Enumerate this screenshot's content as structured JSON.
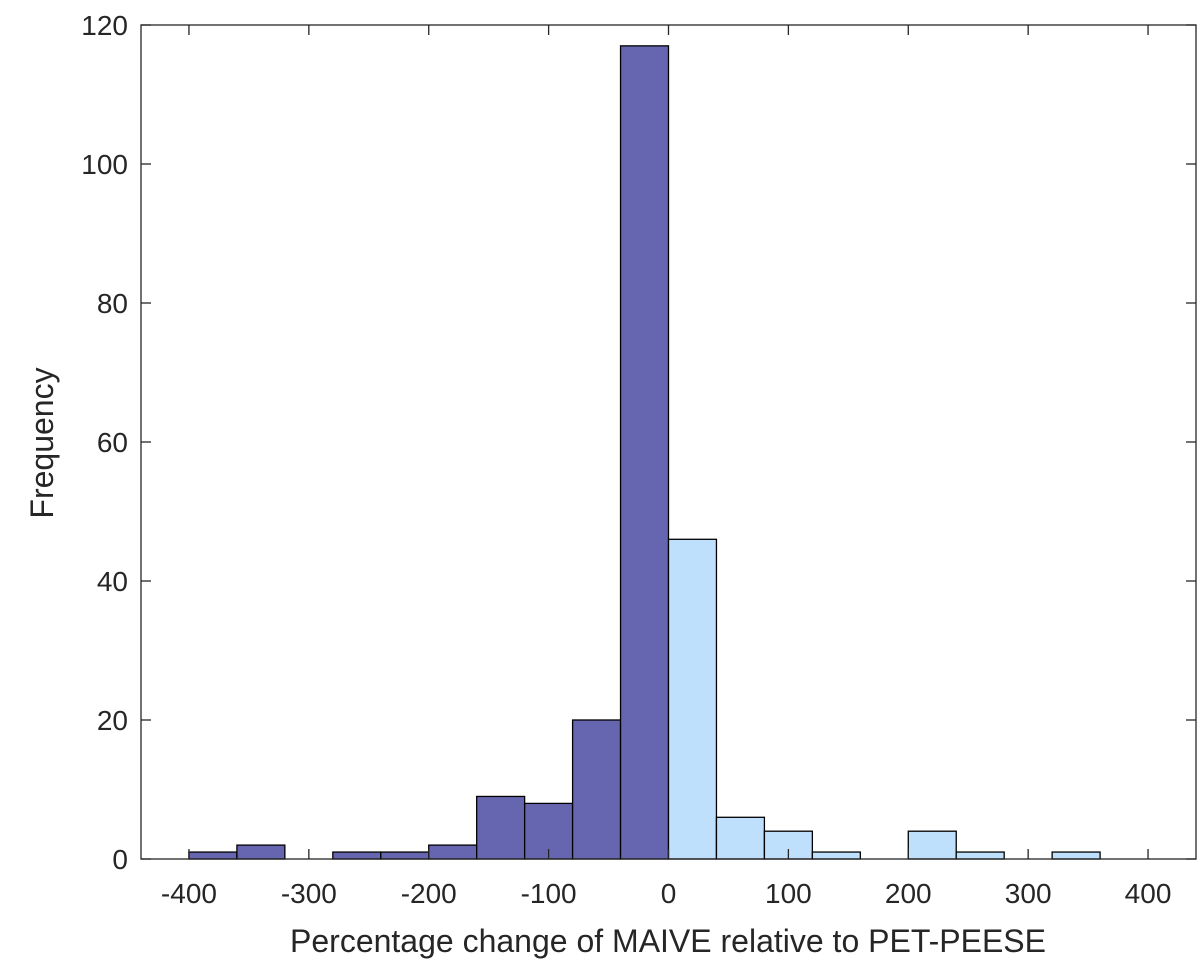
{
  "chart_data": {
    "type": "bar",
    "title": "",
    "xlabel": "Percentage change of MAIVE relative to PET-PEESE",
    "ylabel": "Frequency",
    "xlim": [
      -440,
      440
    ],
    "ylim": [
      0,
      120
    ],
    "grid": false,
    "bin_width": 40,
    "x_ticks": [
      -400,
      -300,
      -200,
      -100,
      0,
      100,
      200,
      300,
      400
    ],
    "x_tick_labels": [
      "-400",
      "-300",
      "-200",
      "-100",
      "0",
      "100",
      "200",
      "300",
      "400"
    ],
    "y_ticks": [
      0,
      20,
      40,
      60,
      80,
      100,
      120
    ],
    "y_tick_labels": [
      "0",
      "20",
      "40",
      "60",
      "80",
      "100",
      "120"
    ],
    "series": [
      {
        "color": "#6666b0",
        "bins": [
          {
            "x0": -400,
            "x1": -360,
            "count": 1
          },
          {
            "x0": -360,
            "x1": -320,
            "count": 2
          },
          {
            "x0": -320,
            "x1": -280,
            "count": 0
          },
          {
            "x0": -280,
            "x1": -240,
            "count": 1
          },
          {
            "x0": -240,
            "x1": -200,
            "count": 1
          },
          {
            "x0": -200,
            "x1": -160,
            "count": 2
          },
          {
            "x0": -160,
            "x1": -120,
            "count": 9
          },
          {
            "x0": -120,
            "x1": -80,
            "count": 8
          },
          {
            "x0": -80,
            "x1": -40,
            "count": 20
          },
          {
            "x0": -40,
            "x1": 0,
            "count": 117
          }
        ]
      },
      {
        "color": "#bfe0fd",
        "bins": [
          {
            "x0": 0,
            "x1": 40,
            "count": 46
          },
          {
            "x0": 40,
            "x1": 80,
            "count": 6
          },
          {
            "x0": 80,
            "x1": 120,
            "count": 4
          },
          {
            "x0": 120,
            "x1": 160,
            "count": 1
          },
          {
            "x0": 160,
            "x1": 200,
            "count": 0
          },
          {
            "x0": 200,
            "x1": 240,
            "count": 4
          },
          {
            "x0": 240,
            "x1": 280,
            "count": 1
          },
          {
            "x0": 280,
            "x1": 320,
            "count": 0
          },
          {
            "x0": 320,
            "x1": 360,
            "count": 1
          },
          {
            "x0": 360,
            "x1": 400,
            "count": 0
          }
        ]
      }
    ]
  }
}
